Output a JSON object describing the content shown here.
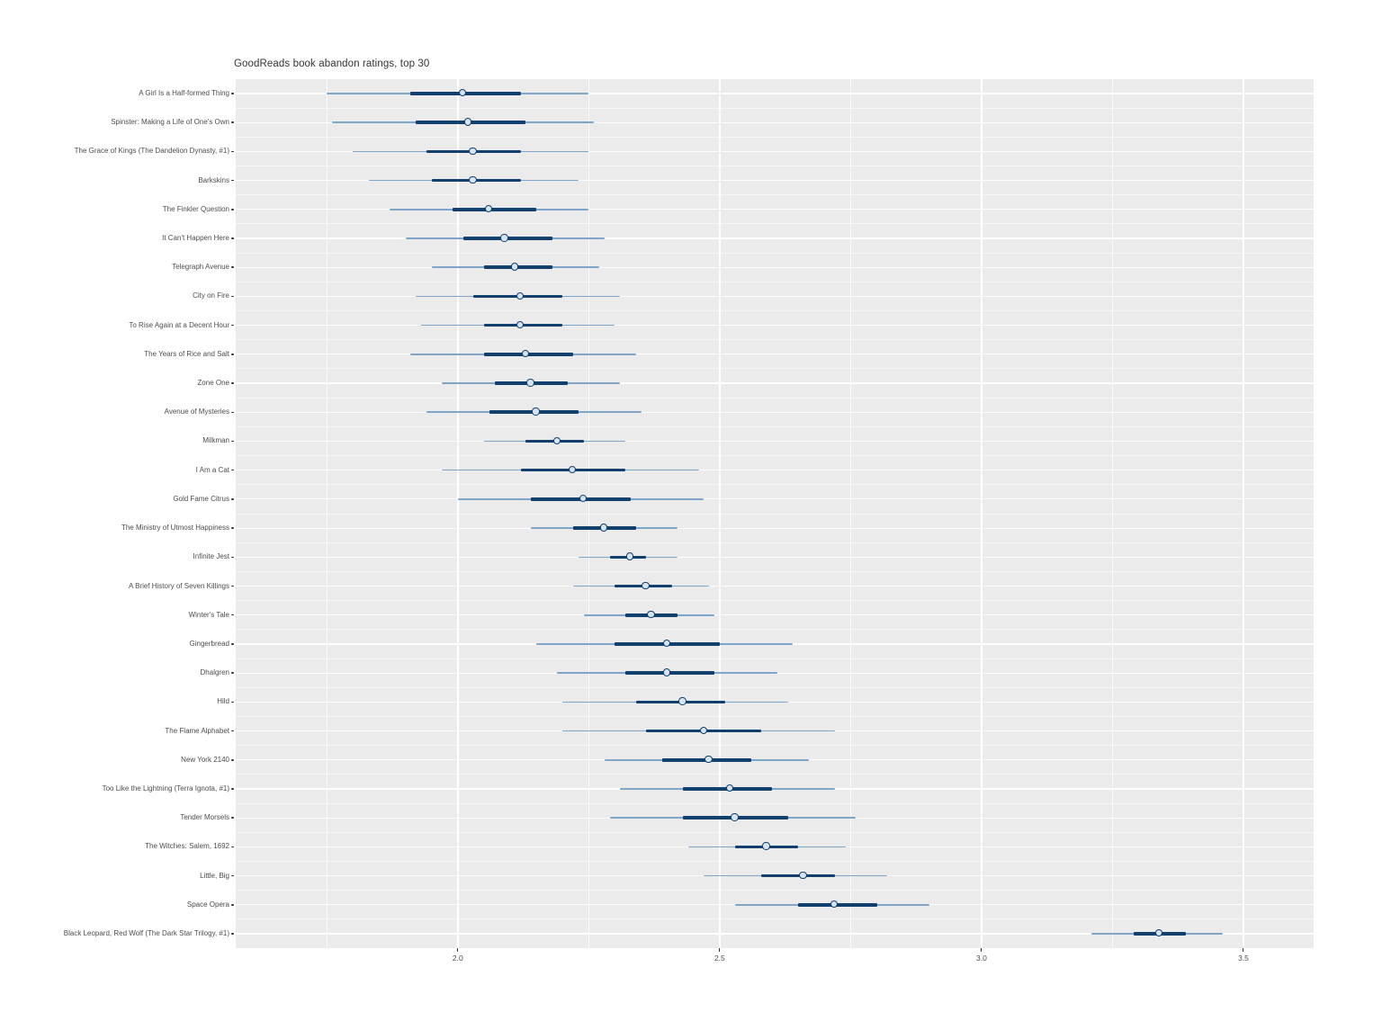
{
  "page": {
    "background": "#ffffff"
  },
  "style": {
    "panel_bg": "#ebebeb",
    "grid_color": "#ffffff",
    "interval_thin": "#7fa6c9",
    "interval_thick": "#11406e",
    "point_fill": "#d8e3ee",
    "point_stroke": "#11406e",
    "title_color": "#333333",
    "axis_text_color": "#4d4d4d",
    "tick_color": "#333333"
  },
  "chart_data": {
    "type": "scatter",
    "mark": "point-interval (median point, thick inner interval, thin outer interval)",
    "title": "GoodReads book abandon ratings, top 30",
    "xlabel": "",
    "ylabel": "",
    "xlim": [
      1.576,
      3.634
    ],
    "x_major_ticks": [
      2.0,
      2.5,
      3.0,
      3.5
    ],
    "x_major_tick_labels": [
      "2.0",
      "2.5",
      "3.0",
      "3.5"
    ],
    "x_minor_ticks": [
      1.75,
      2.25,
      2.75,
      3.25
    ],
    "grid": "white major/minor gridlines on gray panel",
    "legend": "none",
    "series": [
      {
        "label": "A Girl Is a Half-formed Thing",
        "outer": [
          1.75,
          2.25
        ],
        "inner": [
          1.91,
          2.12
        ],
        "median": 2.01
      },
      {
        "label": "Spinster: Making a Life of One's Own",
        "outer": [
          1.76,
          2.26
        ],
        "inner": [
          1.92,
          2.13
        ],
        "median": 2.02
      },
      {
        "label": "The Grace of Kings (The Dandelion Dynasty, #1)",
        "outer": [
          1.8,
          2.25
        ],
        "inner": [
          1.94,
          2.12
        ],
        "median": 2.03
      },
      {
        "label": "Barkskins",
        "outer": [
          1.83,
          2.23
        ],
        "inner": [
          1.95,
          2.12
        ],
        "median": 2.03
      },
      {
        "label": "The Finkler Question",
        "outer": [
          1.87,
          2.25
        ],
        "inner": [
          1.99,
          2.15
        ],
        "median": 2.06
      },
      {
        "label": "It Can't Happen Here",
        "outer": [
          1.9,
          2.28
        ],
        "inner": [
          2.01,
          2.18
        ],
        "median": 2.09
      },
      {
        "label": "Telegraph Avenue",
        "outer": [
          1.95,
          2.27
        ],
        "inner": [
          2.05,
          2.18
        ],
        "median": 2.11
      },
      {
        "label": "City on Fire",
        "outer": [
          1.92,
          2.31
        ],
        "inner": [
          2.03,
          2.2
        ],
        "median": 2.12
      },
      {
        "label": "To Rise Again at a Decent Hour",
        "outer": [
          1.93,
          2.3
        ],
        "inner": [
          2.05,
          2.2
        ],
        "median": 2.12
      },
      {
        "label": "The Years of Rice and Salt",
        "outer": [
          1.91,
          2.34
        ],
        "inner": [
          2.05,
          2.22
        ],
        "median": 2.13
      },
      {
        "label": "Zone One",
        "outer": [
          1.97,
          2.31
        ],
        "inner": [
          2.07,
          2.21
        ],
        "median": 2.14
      },
      {
        "label": "Avenue of Mysteries",
        "outer": [
          1.94,
          2.35
        ],
        "inner": [
          2.06,
          2.23
        ],
        "median": 2.15
      },
      {
        "label": "Milkman",
        "outer": [
          2.05,
          2.32
        ],
        "inner": [
          2.13,
          2.24
        ],
        "median": 2.19
      },
      {
        "label": "I Am a Cat",
        "outer": [
          1.97,
          2.46
        ],
        "inner": [
          2.12,
          2.32
        ],
        "median": 2.22
      },
      {
        "label": "Gold Fame Citrus",
        "outer": [
          2.0,
          2.47
        ],
        "inner": [
          2.14,
          2.33
        ],
        "median": 2.24
      },
      {
        "label": "The Ministry of Utmost Happiness",
        "outer": [
          2.14,
          2.42
        ],
        "inner": [
          2.22,
          2.34
        ],
        "median": 2.28
      },
      {
        "label": "Infinite Jest",
        "outer": [
          2.23,
          2.42
        ],
        "inner": [
          2.29,
          2.36
        ],
        "median": 2.33
      },
      {
        "label": "A Brief History of Seven Killings",
        "outer": [
          2.22,
          2.48
        ],
        "inner": [
          2.3,
          2.41
        ],
        "median": 2.36
      },
      {
        "label": "Winter's Tale",
        "outer": [
          2.24,
          2.49
        ],
        "inner": [
          2.32,
          2.42
        ],
        "median": 2.37
      },
      {
        "label": "Gingerbread",
        "outer": [
          2.15,
          2.64
        ],
        "inner": [
          2.3,
          2.5
        ],
        "median": 2.4
      },
      {
        "label": "Dhalgren",
        "outer": [
          2.19,
          2.61
        ],
        "inner": [
          2.32,
          2.49
        ],
        "median": 2.4
      },
      {
        "label": "Hild",
        "outer": [
          2.2,
          2.63
        ],
        "inner": [
          2.34,
          2.51
        ],
        "median": 2.43
      },
      {
        "label": "The Flame Alphabet",
        "outer": [
          2.2,
          2.72
        ],
        "inner": [
          2.36,
          2.58
        ],
        "median": 2.47
      },
      {
        "label": "New York 2140",
        "outer": [
          2.28,
          2.67
        ],
        "inner": [
          2.39,
          2.56
        ],
        "median": 2.48
      },
      {
        "label": "Too Like the Lightning (Terra Ignota, #1)",
        "outer": [
          2.31,
          2.72
        ],
        "inner": [
          2.43,
          2.6
        ],
        "median": 2.52
      },
      {
        "label": "Tender Morsels",
        "outer": [
          2.29,
          2.76
        ],
        "inner": [
          2.43,
          2.63
        ],
        "median": 2.53
      },
      {
        "label": "The Witches: Salem, 1692",
        "outer": [
          2.44,
          2.74
        ],
        "inner": [
          2.53,
          2.65
        ],
        "median": 2.59
      },
      {
        "label": "Little, Big",
        "outer": [
          2.47,
          2.82
        ],
        "inner": [
          2.58,
          2.72
        ],
        "median": 2.66
      },
      {
        "label": "Space Opera",
        "outer": [
          2.53,
          2.9
        ],
        "inner": [
          2.65,
          2.8
        ],
        "median": 2.72
      },
      {
        "label": "Black Leopard, Red Wolf (The Dark Star Trilogy, #1)",
        "outer": [
          3.21,
          3.46
        ],
        "inner": [
          3.29,
          3.39
        ],
        "median": 3.34
      }
    ]
  }
}
